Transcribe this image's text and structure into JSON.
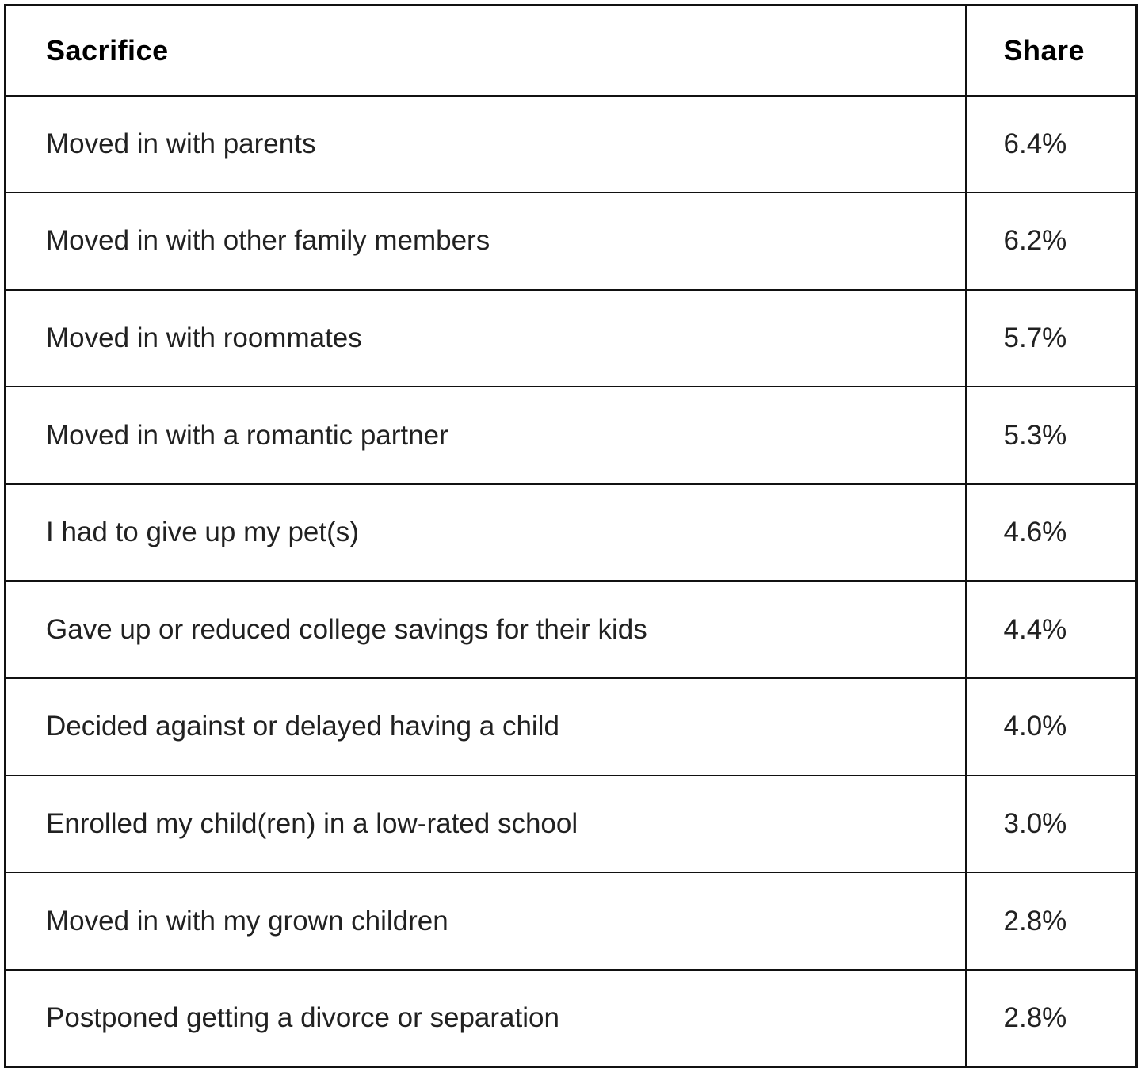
{
  "chart_data": {
    "type": "table",
    "title": "",
    "columns": [
      "Sacrifice",
      "Share"
    ],
    "rows": [
      [
        "Moved in with parents",
        "6.4%"
      ],
      [
        "Moved in with other family members",
        "6.2%"
      ],
      [
        "Moved in with roommates",
        "5.7%"
      ],
      [
        "Moved in with a romantic partner",
        "5.3%"
      ],
      [
        "I had to give up my pet(s)",
        "4.6%"
      ],
      [
        "Gave up or reduced college savings for their kids",
        "4.4%"
      ],
      [
        "Decided against or delayed having a child",
        "4.0%"
      ],
      [
        "Enrolled my child(ren) in a low-rated school",
        "3.0%"
      ],
      [
        "Moved in with my grown children",
        "2.8%"
      ],
      [
        "Postponed getting a divorce or separation",
        "2.8%"
      ]
    ]
  },
  "table": {
    "headers": {
      "sacrifice": "Sacrifice",
      "share": "Share"
    },
    "rows": [
      {
        "sacrifice": "Moved in with parents",
        "share": "6.4%"
      },
      {
        "sacrifice": "Moved in with other family members",
        "share": "6.2%"
      },
      {
        "sacrifice": "Moved in with roommates",
        "share": "5.7%"
      },
      {
        "sacrifice": "Moved in with a romantic partner",
        "share": "5.3%"
      },
      {
        "sacrifice": "I had to give up my pet(s)",
        "share": "4.6%"
      },
      {
        "sacrifice": "Gave up or reduced college savings for their kids",
        "share": "4.4%"
      },
      {
        "sacrifice": "Decided against or delayed having a child",
        "share": "4.0%"
      },
      {
        "sacrifice": "Enrolled my child(ren) in a low-rated school",
        "share": "3.0%"
      },
      {
        "sacrifice": "Moved in with my grown children",
        "share": "2.8%"
      },
      {
        "sacrifice": "Postponed getting a divorce or separation",
        "share": "2.8%"
      }
    ]
  },
  "colors": {
    "border": "#111111",
    "header_text": "#000000",
    "body_text": "#212121",
    "background": "#ffffff"
  }
}
